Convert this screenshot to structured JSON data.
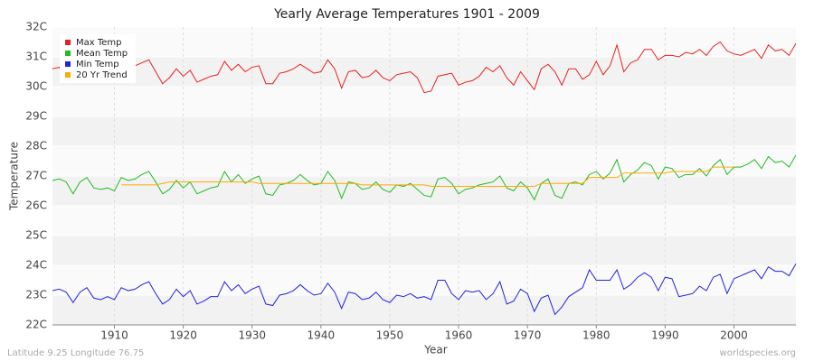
{
  "chart_data": {
    "type": "line",
    "title": "Yearly Average Temperatures 1901 - 2009",
    "x_label": "Year",
    "y_label": "Temperature",
    "footer_left": "Latitude 9.25 Longitude 76.75",
    "footer_right": "worldspecies.org",
    "legend": "top-left",
    "grid": true,
    "xlim": [
      1901,
      2009
    ],
    "xticks": [
      1910,
      1920,
      1930,
      1940,
      1950,
      1960,
      1970,
      1980,
      1990,
      2000
    ],
    "ylim": [
      22,
      32
    ],
    "yticks": [
      {
        "value": 22,
        "label": "22C"
      },
      {
        "value": 23,
        "label": "23C"
      },
      {
        "value": 24,
        "label": "24C"
      },
      {
        "value": 25,
        "label": "25C"
      },
      {
        "value": 26,
        "label": "26C"
      },
      {
        "value": 27,
        "label": "27C"
      },
      {
        "value": 28,
        "label": "28C"
      },
      {
        "value": 29,
        "label": "29C"
      },
      {
        "value": 30,
        "label": "30C"
      },
      {
        "value": 31,
        "label": "31C"
      },
      {
        "value": 32,
        "label": "32C"
      }
    ],
    "x": [
      1901,
      1902,
      1903,
      1904,
      1905,
      1906,
      1907,
      1908,
      1909,
      1910,
      1911,
      1912,
      1913,
      1914,
      1915,
      1916,
      1917,
      1918,
      1919,
      1920,
      1921,
      1922,
      1923,
      1924,
      1925,
      1926,
      1927,
      1928,
      1929,
      1930,
      1931,
      1932,
      1933,
      1934,
      1935,
      1936,
      1937,
      1938,
      1939,
      1940,
      1941,
      1942,
      1943,
      1944,
      1945,
      1946,
      1947,
      1948,
      1949,
      1950,
      1951,
      1952,
      1953,
      1954,
      1955,
      1956,
      1957,
      1958,
      1959,
      1960,
      1961,
      1962,
      1963,
      1964,
      1965,
      1966,
      1967,
      1968,
      1969,
      1970,
      1971,
      1972,
      1973,
      1974,
      1975,
      1976,
      1977,
      1978,
      1979,
      1980,
      1981,
      1982,
      1983,
      1984,
      1985,
      1986,
      1987,
      1988,
      1989,
      1990,
      1991,
      1992,
      1993,
      1994,
      1995,
      1996,
      1997,
      1998,
      1999,
      2000,
      2001,
      2002,
      2003,
      2004,
      2005,
      2006,
      2007,
      2008,
      2009
    ],
    "series": [
      {
        "name": "Max Temp",
        "color": "#e82020",
        "values": [
          30.6,
          30.65,
          30.2,
          30.5,
          30.7,
          30.8,
          30.4,
          30.6,
          30.5,
          30.7,
          30.5,
          30.6,
          30.7,
          30.8,
          30.9,
          30.5,
          30.1,
          30.3,
          30.6,
          30.35,
          30.55,
          30.15,
          30.25,
          30.35,
          30.4,
          30.85,
          30.55,
          30.75,
          30.5,
          30.65,
          30.7,
          30.1,
          30.1,
          30.45,
          30.5,
          30.6,
          30.75,
          30.6,
          30.45,
          30.5,
          30.9,
          30.6,
          29.95,
          30.5,
          30.55,
          30.3,
          30.35,
          30.55,
          30.3,
          30.2,
          30.4,
          30.45,
          30.5,
          30.3,
          29.8,
          29.85,
          30.35,
          30.4,
          30.45,
          30.05,
          30.15,
          30.2,
          30.35,
          30.65,
          30.5,
          30.7,
          30.3,
          30.05,
          30.5,
          30.2,
          29.9,
          30.6,
          30.75,
          30.5,
          30.05,
          30.6,
          30.6,
          30.25,
          30.4,
          30.85,
          30.4,
          30.7,
          31.4,
          30.5,
          30.8,
          30.9,
          31.25,
          31.25,
          30.9,
          31.05,
          31.05,
          31.0,
          31.15,
          31.1,
          31.25,
          31.05,
          31.35,
          31.5,
          31.2,
          31.1,
          31.05,
          31.15,
          31.25,
          30.95,
          31.4,
          31.2,
          31.25,
          31.05,
          31.45
        ]
      },
      {
        "name": "Mean Temp",
        "color": "#22bb22",
        "values": [
          26.85,
          26.9,
          26.8,
          26.4,
          26.8,
          26.95,
          26.6,
          26.55,
          26.6,
          26.5,
          26.95,
          26.85,
          26.9,
          27.05,
          27.15,
          26.8,
          26.4,
          26.55,
          26.85,
          26.6,
          26.8,
          26.4,
          26.5,
          26.6,
          26.65,
          27.15,
          26.8,
          27.05,
          26.75,
          26.9,
          27.0,
          26.4,
          26.35,
          26.7,
          26.75,
          26.85,
          27.05,
          26.85,
          26.7,
          26.75,
          27.15,
          26.85,
          26.25,
          26.8,
          26.75,
          26.55,
          26.6,
          26.8,
          26.55,
          26.45,
          26.7,
          26.65,
          26.75,
          26.55,
          26.35,
          26.3,
          26.9,
          26.95,
          26.75,
          26.4,
          26.55,
          26.6,
          26.7,
          26.75,
          26.8,
          27.0,
          26.6,
          26.5,
          26.8,
          26.6,
          26.2,
          26.75,
          26.9,
          26.35,
          26.25,
          26.75,
          26.8,
          26.7,
          27.05,
          27.15,
          26.9,
          27.1,
          27.55,
          26.8,
          27.05,
          27.2,
          27.45,
          27.35,
          26.9,
          27.3,
          27.25,
          26.95,
          27.05,
          27.05,
          27.25,
          27.0,
          27.35,
          27.55,
          27.05,
          27.3,
          27.3,
          27.4,
          27.55,
          27.25,
          27.65,
          27.45,
          27.5,
          27.3,
          27.7
        ]
      },
      {
        "name": "Min Temp",
        "color": "#2222dd",
        "values": [
          23.15,
          23.2,
          23.1,
          22.75,
          23.1,
          23.25,
          22.9,
          22.85,
          22.95,
          22.85,
          23.25,
          23.15,
          23.2,
          23.35,
          23.45,
          23.05,
          22.7,
          22.85,
          23.2,
          22.95,
          23.15,
          22.7,
          22.8,
          22.95,
          22.95,
          23.45,
          23.15,
          23.35,
          23.05,
          23.2,
          23.3,
          22.7,
          22.65,
          23.0,
          23.05,
          23.15,
          23.35,
          23.15,
          23.0,
          23.05,
          23.4,
          23.1,
          22.55,
          23.1,
          23.05,
          22.85,
          22.9,
          23.1,
          22.85,
          22.75,
          23.0,
          22.95,
          23.05,
          22.9,
          22.95,
          22.85,
          23.5,
          23.5,
          23.05,
          22.85,
          23.15,
          23.1,
          23.15,
          22.85,
          23.05,
          23.45,
          22.7,
          22.8,
          23.2,
          23.05,
          22.45,
          22.9,
          23.0,
          22.35,
          22.6,
          22.95,
          23.1,
          23.25,
          23.85,
          23.5,
          23.5,
          23.5,
          23.85,
          23.2,
          23.35,
          23.6,
          23.75,
          23.6,
          23.15,
          23.6,
          23.55,
          22.95,
          23.0,
          23.05,
          23.3,
          23.15,
          23.6,
          23.7,
          23.05,
          23.55,
          23.65,
          23.75,
          23.85,
          23.55,
          23.95,
          23.8,
          23.8,
          23.65,
          24.05
        ]
      },
      {
        "name": "20 Yr Trend",
        "color": "#ffaa00",
        "values": [
          null,
          null,
          null,
          null,
          null,
          null,
          null,
          null,
          null,
          null,
          26.7,
          26.7,
          26.7,
          26.7,
          26.7,
          26.7,
          26.75,
          26.8,
          26.8,
          26.8,
          26.8,
          26.8,
          26.8,
          26.8,
          26.8,
          26.8,
          26.8,
          26.8,
          26.8,
          26.8,
          26.75,
          26.75,
          26.75,
          26.75,
          26.75,
          26.75,
          26.75,
          26.75,
          26.75,
          26.75,
          26.75,
          26.75,
          26.75,
          26.75,
          26.75,
          26.7,
          26.7,
          26.7,
          26.7,
          26.7,
          26.7,
          26.7,
          26.7,
          26.7,
          26.7,
          26.65,
          26.65,
          26.65,
          26.65,
          26.65,
          26.65,
          26.65,
          26.65,
          26.65,
          26.65,
          26.65,
          26.65,
          26.65,
          26.65,
          26.65,
          26.65,
          26.75,
          26.75,
          26.75,
          26.75,
          26.75,
          26.75,
          26.75,
          26.95,
          26.95,
          26.95,
          26.95,
          26.95,
          27.1,
          27.1,
          27.1,
          27.1,
          27.1,
          27.1,
          27.1,
          27.15,
          27.15,
          27.15,
          27.15,
          27.15,
          27.15,
          27.3,
          27.3,
          27.3,
          27.3,
          null,
          null,
          null,
          null,
          null,
          null,
          null,
          null,
          null
        ]
      }
    ]
  }
}
